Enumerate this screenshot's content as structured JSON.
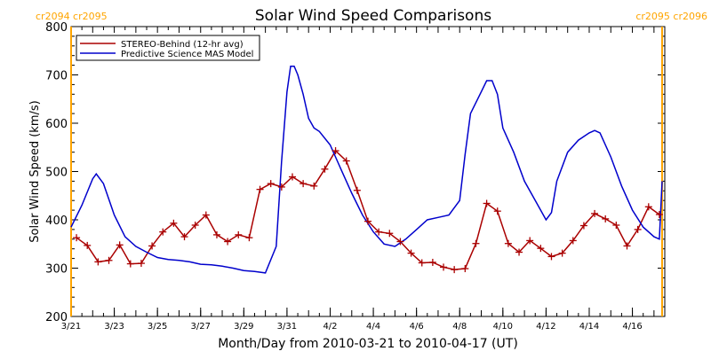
{
  "chart_data": {
    "type": "line",
    "title": "Solar Wind Speed Comparisons",
    "xlabel": "Month/Day from 2010-03-21 to 2010-04-17 (UT)",
    "ylabel": "Solar Wind Speed (km/s)",
    "xlim": [
      "2010-03-21",
      "2010-04-17T12:00"
    ],
    "ylim": [
      200,
      800
    ],
    "grid": false,
    "legend_position": "top-left",
    "x_ticks": [
      {
        "x": "2010-03-21",
        "label": "3/21"
      },
      {
        "x": "2010-03-23",
        "label": "3/23"
      },
      {
        "x": "2010-03-25",
        "label": "3/25"
      },
      {
        "x": "2010-03-27",
        "label": "3/27"
      },
      {
        "x": "2010-03-29",
        "label": "3/29"
      },
      {
        "x": "2010-03-31",
        "label": "3/31"
      },
      {
        "x": "2010-04-02",
        "label": "4/2"
      },
      {
        "x": "2010-04-04",
        "label": "4/4"
      },
      {
        "x": "2010-04-06",
        "label": "4/6"
      },
      {
        "x": "2010-04-08",
        "label": "4/8"
      },
      {
        "x": "2010-04-10",
        "label": "4/10"
      },
      {
        "x": "2010-04-12",
        "label": "4/12"
      },
      {
        "x": "2010-04-14",
        "label": "4/14"
      },
      {
        "x": "2010-04-16",
        "label": "4/16"
      }
    ],
    "y_ticks": [
      200,
      300,
      400,
      500,
      600,
      700,
      800
    ],
    "rotation_markers": [
      {
        "x": "2010-03-21",
        "label": "cr2094 cr2095",
        "side": "left",
        "color": "#ffa500"
      },
      {
        "x": "2010-04-17T09:00",
        "label": "cr2095 cr2096",
        "side": "right",
        "color": "#ffa500"
      }
    ],
    "series": [
      {
        "name": "STEREO-Behind (12-hr avg)",
        "color": "#aa0000",
        "marker": "+",
        "x": [
          "2010-03-21T06:00",
          "2010-03-21T18:00",
          "2010-03-22T06:00",
          "2010-03-22T18:00",
          "2010-03-23T06:00",
          "2010-03-23T18:00",
          "2010-03-24T06:00",
          "2010-03-24T18:00",
          "2010-03-25T06:00",
          "2010-03-25T18:00",
          "2010-03-26T06:00",
          "2010-03-26T18:00",
          "2010-03-27T06:00",
          "2010-03-27T18:00",
          "2010-03-28T06:00",
          "2010-03-28T18:00",
          "2010-03-29T06:00",
          "2010-03-29T18:00",
          "2010-03-30T06:00",
          "2010-03-30T18:00",
          "2010-03-31T06:00",
          "2010-03-31T18:00",
          "2010-04-01T06:00",
          "2010-04-01T18:00",
          "2010-04-02T06:00",
          "2010-04-02T18:00",
          "2010-04-03T06:00",
          "2010-04-03T18:00",
          "2010-04-04T06:00",
          "2010-04-04T18:00",
          "2010-04-05T06:00",
          "2010-04-05T18:00",
          "2010-04-06T06:00",
          "2010-04-06T18:00",
          "2010-04-07T06:00",
          "2010-04-07T18:00",
          "2010-04-08T06:00",
          "2010-04-08T18:00",
          "2010-04-09T06:00",
          "2010-04-09T18:00",
          "2010-04-10T06:00",
          "2010-04-10T18:00",
          "2010-04-11T06:00",
          "2010-04-11T18:00",
          "2010-04-12T06:00",
          "2010-04-12T18:00",
          "2010-04-13T06:00",
          "2010-04-13T18:00",
          "2010-04-14T06:00",
          "2010-04-14T18:00",
          "2010-04-15T06:00",
          "2010-04-15T18:00",
          "2010-04-16T06:00",
          "2010-04-16T18:00",
          "2010-04-17T06:00"
        ],
        "values": [
          363,
          347,
          313,
          316,
          348,
          309,
          310,
          346,
          375,
          393,
          365,
          389,
          410,
          369,
          355,
          369,
          363,
          463,
          475,
          468,
          489,
          475,
          470,
          505,
          543,
          522,
          461,
          397,
          375,
          372,
          355,
          331,
          311,
          312,
          302,
          297,
          299,
          351,
          434,
          418,
          351,
          333,
          357,
          341,
          324,
          331,
          357,
          388,
          413,
          402,
          389,
          346,
          380,
          427,
          411
        ]
      },
      {
        "name": "Predictive Science MAS Model",
        "color": "#0000cc",
        "marker": "none",
        "x": [
          "2010-03-21",
          "2010-03-21T12:00",
          "2010-03-22",
          "2010-03-22T04:00",
          "2010-03-22T12:00",
          "2010-03-23",
          "2010-03-23T12:00",
          "2010-03-24",
          "2010-03-24T12:00",
          "2010-03-25",
          "2010-03-25T12:00",
          "2010-03-26",
          "2010-03-26T12:00",
          "2010-03-27",
          "2010-03-27T12:00",
          "2010-03-28",
          "2010-03-28T12:00",
          "2010-03-29",
          "2010-03-29T12:00",
          "2010-03-30",
          "2010-03-30T12:00",
          "2010-03-30T18:00",
          "2010-03-31",
          "2010-03-31T04:00",
          "2010-03-31T08:00",
          "2010-03-31T12:00",
          "2010-03-31T18:00",
          "2010-04-01",
          "2010-04-01T06:00",
          "2010-04-01T12:00",
          "2010-04-02",
          "2010-04-02T12:00",
          "2010-04-03",
          "2010-04-03T12:00",
          "2010-04-04",
          "2010-04-04T12:00",
          "2010-04-05",
          "2010-04-05T12:00",
          "2010-04-06",
          "2010-04-06T12:00",
          "2010-04-07",
          "2010-04-07T12:00",
          "2010-04-08",
          "2010-04-08T06:00",
          "2010-04-08T12:00",
          "2010-04-09",
          "2010-04-09T06:00",
          "2010-04-09T12:00",
          "2010-04-09T18:00",
          "2010-04-10",
          "2010-04-10T12:00",
          "2010-04-11",
          "2010-04-11T12:00",
          "2010-04-12",
          "2010-04-12T06:00",
          "2010-04-12T12:00",
          "2010-04-13",
          "2010-04-13T12:00",
          "2010-04-14",
          "2010-04-14T06:00",
          "2010-04-14T12:00",
          "2010-04-15",
          "2010-04-15T12:00",
          "2010-04-16",
          "2010-04-16T12:00",
          "2010-04-17",
          "2010-04-17T06:00",
          "2010-04-17T09:00"
        ],
        "values": [
          385,
          430,
          485,
          495,
          475,
          410,
          365,
          345,
          333,
          322,
          318,
          316,
          313,
          308,
          307,
          304,
          300,
          295,
          293,
          290,
          345,
          520,
          665,
          718,
          718,
          700,
          660,
          610,
          590,
          583,
          555,
          505,
          455,
          410,
          375,
          350,
          345,
          360,
          380,
          400,
          405,
          410,
          440,
          535,
          620,
          665,
          688,
          688,
          660,
          590,
          540,
          480,
          440,
          400,
          415,
          480,
          540,
          565,
          580,
          585,
          580,
          530,
          470,
          420,
          385,
          365,
          360,
          480
        ]
      }
    ]
  }
}
